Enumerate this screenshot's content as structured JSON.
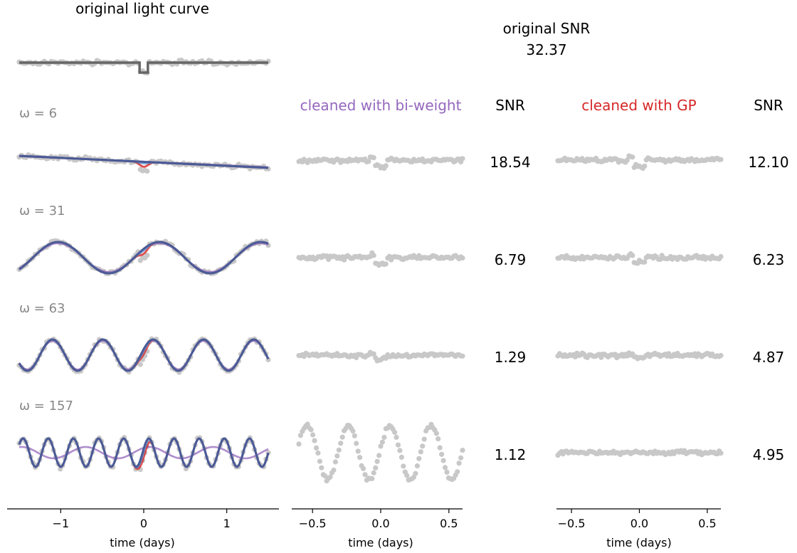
{
  "titles": {
    "original": "original light curve",
    "original_snr_label": "original SNR",
    "original_snr_value": "32.37",
    "biweight": "cleaned with bi-weight",
    "gp": "cleaned with GP",
    "snr_header": "SNR"
  },
  "colors": {
    "points": "#c8c8c8",
    "model": "#666666",
    "biweight": "#9467bd",
    "gp": "#d62728",
    "trend_light": "#5b9bd5",
    "trend_dark": "#4a5a96"
  },
  "chart_data": [
    {
      "type": "line",
      "panel": "original",
      "xlabel": "time (days)",
      "xlim": [
        -1.55,
        1.55
      ],
      "xticks": [
        -1,
        0,
        1
      ],
      "xtick_labels": [
        "−1",
        "0",
        "1"
      ],
      "rows": [
        {
          "label": "",
          "omega": null
        },
        {
          "label": "ω = 6",
          "omega": 6
        },
        {
          "label": "ω = 31",
          "omega": 31
        },
        {
          "label": "ω = 63",
          "omega": 63
        },
        {
          "label": "ω = 157",
          "omega": 157
        }
      ],
      "transit": {
        "center": 0.0,
        "duration": 0.1
      }
    },
    {
      "type": "scatter",
      "panel": "biweight",
      "xlabel": "time (days)",
      "xlim": [
        -0.62,
        0.62
      ],
      "xticks": [
        -0.5,
        0.0,
        0.5
      ],
      "xtick_labels": [
        "−0.5",
        "0.0",
        "0.5"
      ],
      "snr": [
        "18.54",
        "6.79",
        "1.29",
        "1.12"
      ]
    },
    {
      "type": "scatter",
      "panel": "gp",
      "xlabel": "time (days)",
      "xlim": [
        -0.62,
        0.62
      ],
      "xticks": [
        -0.5,
        0.0,
        0.5
      ],
      "xtick_labels": [
        "−0.5",
        "0.0",
        "0.5"
      ],
      "snr": [
        "12.10",
        "6.23",
        "4.87",
        "4.95"
      ]
    }
  ]
}
